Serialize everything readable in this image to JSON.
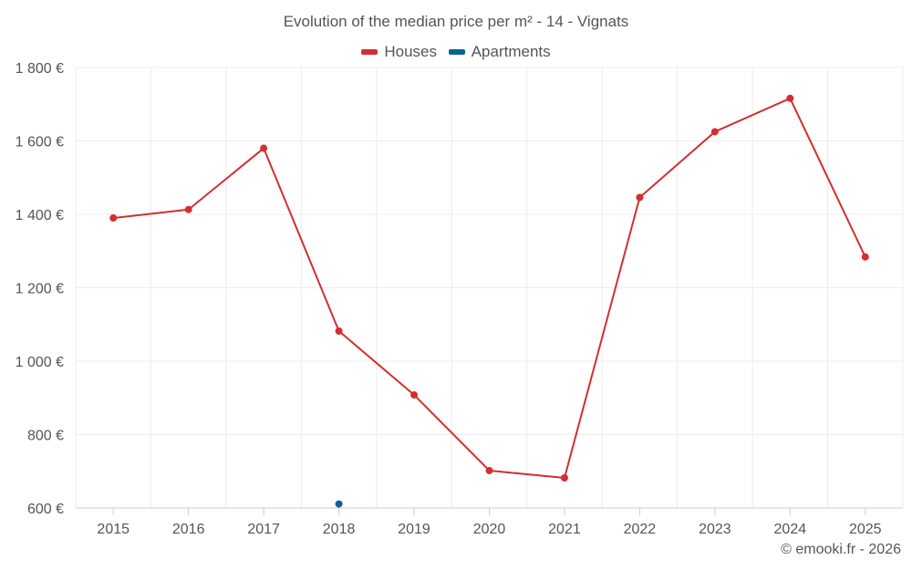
{
  "chart_data": {
    "type": "line",
    "title": "Evolution of the median price per m² - 14 - Vignats",
    "categories": [
      "2015",
      "2016",
      "2017",
      "2018",
      "2019",
      "2020",
      "2021",
      "2022",
      "2023",
      "2024",
      "2025"
    ],
    "series": [
      {
        "name": "Houses",
        "color": "#d32f2f",
        "values": [
          1390,
          1413,
          1580,
          1082,
          908,
          702,
          682,
          1446,
          1625,
          1716,
          1284
        ]
      },
      {
        "name": "Apartments",
        "color": "#0a6394",
        "values": [
          null,
          null,
          null,
          611,
          null,
          null,
          null,
          null,
          null,
          null,
          null
        ]
      }
    ],
    "y_ticks": [
      "600 €",
      "800 €",
      "1 000 €",
      "1 200 €",
      "1 400 €",
      "1 600 €",
      "1 800 €"
    ],
    "ylim": [
      600,
      1800
    ],
    "grid": true,
    "legend_position": "top-center"
  },
  "credit": "© emooki.fr - 2026"
}
